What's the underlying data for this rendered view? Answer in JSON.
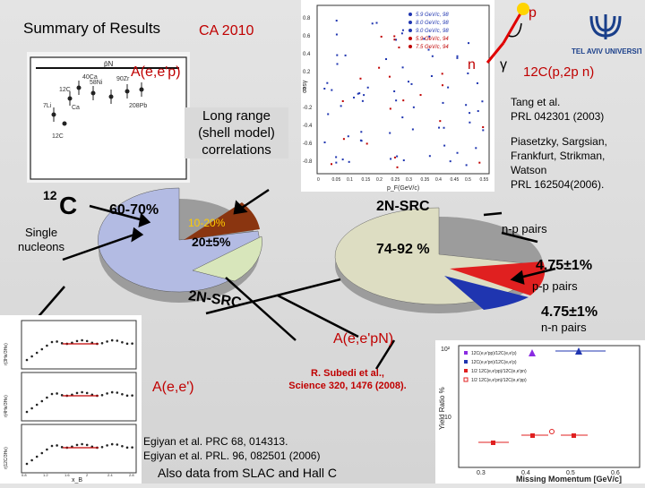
{
  "header": {
    "title": "Summary of Results",
    "conference": "CA 2010",
    "logo_text": "TEL AVIV UNIVERSITY"
  },
  "labels": {
    "a_eep": "A(e,e'p)",
    "long_range": "Long range\n(shell model)\ncorrelations",
    "c12_mass": "12",
    "c12_symbol": "C",
    "single_nucleons": "Single\nnucleons",
    "pct_60_70": "60-70%",
    "pct_10_20": "10-20%",
    "pct_20_5": "20±5%",
    "two_n_src_top": "2N-SRC",
    "two_n_src_bottom": "2N-SRC",
    "pct_74_92": "74-92 %",
    "np_pairs": "n-p pairs",
    "pp_pairs": "p-p pairs",
    "nn_pairs": "n-n pairs",
    "pp_value": "4.75±1%",
    "nn_value": "4.75±1%",
    "a_eepn": "A(e,e'pN)",
    "a_ee": "A(e,e')",
    "reaction": "12C(p,2p n)",
    "p_label": "p",
    "n_label": "n",
    "gamma_label": "γ"
  },
  "references": {
    "tang": "Tang et al.\nPRL 042301 (2003)",
    "piasetzky": "Piasetzky, Sargsian,\nFrankfurt, Strikman,\nWatson\nPRL 162504(2006).",
    "subedi": "R. Subedi et al.,\nScience 320, 1476 (2008).",
    "egiyan1": "Egiyan et al. PRC 68, 014313.",
    "egiyan2": "Egiyan et al. PRL. 96, 082501 (2006)",
    "also": "Also data from SLAC and Hall C"
  },
  "scatter_plot": {
    "ylabel": "cosγ",
    "xlabel": "p_F(GeV/c)",
    "legend": [
      "5.9 GeV/c, 98",
      "8.0 GeV/c, 98",
      "9.0 GeV/c, 98",
      "5.9 GeV/c, 94",
      "7.5 GeV/c, 94"
    ],
    "yticks": [
      "0.8",
      "0.6",
      "0.4",
      "0.2",
      "0",
      "-0.2",
      "-0.4",
      "-0.6",
      "-0.8"
    ],
    "xticks": [
      "0",
      "0.05",
      "0.1",
      "0.15",
      "0.2",
      "0.25",
      "0.3",
      "0.35",
      "0.4",
      "0.45",
      "0.5",
      "0.55"
    ]
  },
  "nucleus_plot": {
    "label": "p̄N",
    "elements": [
      "12C",
      "40Ca",
      "58Ni",
      "90Zr",
      "7Li",
      "Ca",
      "208Pb",
      "12C"
    ]
  },
  "ratio_plot": {
    "ylabel": "Yield Ratio %",
    "xlabel": "Missing Momentum [GeV/c]",
    "legend": [
      "12C(e,e'pp)/12C(e,e'p)",
      "12C(e,e'pn)/12C(e,e'p)",
      "1/2 12C(e,e'pp)/12C(e,e'pn)",
      "1/2 12C(e,e'pn)/12C(e,e'pp)"
    ],
    "yticks": [
      "10²",
      "10"
    ],
    "xticks": [
      "0.3",
      "0.4",
      "0.5",
      "0.6"
    ]
  },
  "x_scaling_plot": {
    "xlabel": "x_B",
    "ylabels": [
      "r(3He/3He)",
      "r(4He/3He)",
      "r(12C/3He)"
    ],
    "xticks": [
      "0.8",
      "1",
      "1.2",
      "1.4",
      "1.6",
      "1.8",
      "2",
      "2.2",
      "2.4",
      "2.6",
      "2.8"
    ]
  },
  "colors": {
    "red": "#c00000",
    "pie_green": "#d8e6bb",
    "pie_blue": "#b3bbe3",
    "pie_brown": "#8a3510",
    "np_gray": "#ddddc2",
    "pp_red": "#e02020",
    "nn_blue": "#1f35b0"
  }
}
